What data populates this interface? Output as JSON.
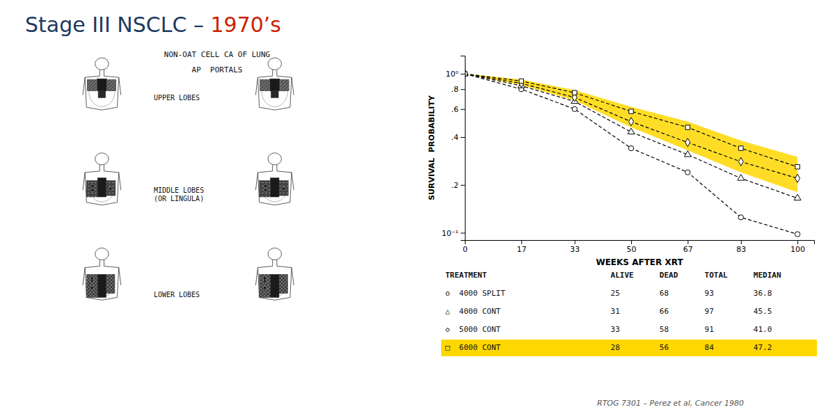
{
  "title": [
    {
      "text": "Stage III NSCLC – ",
      "color": "#1e3a5f"
    },
    {
      "text": "1970’s",
      "color": "#cc2200"
    }
  ],
  "chart_data": [
    {
      "type": "diagram",
      "title": "NON-OAT CELL CA OF LUNG",
      "subtitle": "AP  PORTALS",
      "categories": [
        "UPPER LOBES",
        "MIDDLE LOBES\n(OR LINGULA)",
        "LOWER LOBES"
      ]
    },
    {
      "type": "line",
      "x": [
        0,
        17,
        33,
        50,
        67,
        83,
        100
      ],
      "xlabel": "WEEKS AFTER XRT",
      "ylabel": "SURVIVAL  PROBABILITY",
      "xlim": [
        0,
        105
      ],
      "ylim": [
        0.09,
        1.3
      ],
      "xticks": [
        0,
        17,
        33,
        50,
        67,
        83,
        100
      ],
      "yticks": [
        {
          "value": 0.1,
          "label": "10⁻¹"
        },
        {
          "value": 0.2,
          "label": ".2"
        },
        {
          "value": 0.4,
          "label": ".4"
        },
        {
          "value": 0.6,
          "label": ".6"
        },
        {
          "value": 0.8,
          "label": ".8"
        },
        {
          "value": 1.0,
          "label": "10⁰"
        }
      ],
      "log": "y",
      "grid": false,
      "series": [
        {
          "type": "band",
          "color": "#FFD700",
          "lower": [
            1.0,
            0.85,
            0.68,
            0.46,
            0.33,
            0.24,
            0.18
          ],
          "upper": [
            1.0,
            0.92,
            0.79,
            0.62,
            0.5,
            0.38,
            0.3
          ]
        },
        {
          "type": "line",
          "color": "#000000",
          "marker": "circle",
          "line_style": "dashed",
          "values": [
            1.0,
            0.8,
            0.6,
            0.34,
            0.24,
            0.125,
            0.098
          ]
        },
        {
          "type": "line",
          "color": "#000000",
          "marker": "triangle",
          "line_style": "dashed",
          "values": [
            1.0,
            0.84,
            0.67,
            0.43,
            0.31,
            0.22,
            0.165
          ]
        },
        {
          "type": "line",
          "color": "#000000",
          "marker": "diamond",
          "line_style": "dashed",
          "values": [
            1.0,
            0.87,
            0.71,
            0.5,
            0.37,
            0.28,
            0.22
          ]
        },
        {
          "type": "line",
          "color": "#000000",
          "marker": "square",
          "line_style": "dashed",
          "values": [
            1.0,
            0.9,
            0.76,
            0.58,
            0.46,
            0.34,
            0.26
          ]
        }
      ]
    },
    {
      "type": "table",
      "xlabel": "TREATMENT",
      "categories": [
        "o  4000 SPLIT",
        "△  4000 CONT",
        "◇  5000 CONT",
        "□  6000 CONT"
      ],
      "series": [
        {
          "name": "ALIVE",
          "values": [
            25,
            31,
            33,
            28
          ]
        },
        {
          "name": "DEAD",
          "values": [
            68,
            66,
            58,
            56
          ]
        },
        {
          "name": "TOTAL",
          "values": [
            93,
            97,
            91,
            84
          ]
        },
        {
          "name": "MEDIAN",
          "values": [
            36.8,
            45.5,
            41.0,
            47.2
          ],
          "value_labels": [
            "36.8",
            "45.5",
            "41.0",
            "47.2"
          ]
        }
      ],
      "colors": [
        "#ffffff",
        "#ffffff",
        "#ffffff",
        "#FFD700"
      ],
      "annotations": [
        "RTOG 7301 – Perez et al, Cancer 1980"
      ]
    }
  ]
}
